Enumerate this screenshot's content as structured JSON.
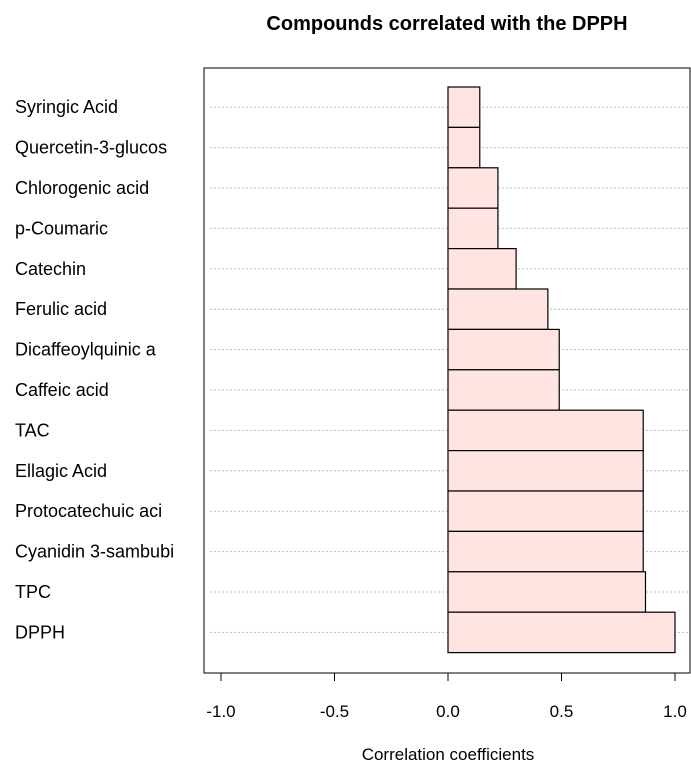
{
  "chart_data": {
    "type": "bar",
    "orientation": "horizontal",
    "title": "Compounds correlated with the DPPH",
    "xlabel": "Correlation coefficients",
    "ylabel": "",
    "xlim": [
      -1.0,
      1.0
    ],
    "x_ticks": [
      "-1.0",
      "-0.5",
      "0.0",
      "0.5",
      "1.0"
    ],
    "x_tick_values": [
      -1.0,
      -0.5,
      0.0,
      0.5,
      1.0
    ],
    "grid": "horizontal dotted lines",
    "legend": "none",
    "categories": [
      "Syringic Acid",
      "Quercetin-3-glucos",
      "Chlorogenic acid",
      "p-Coumaric",
      "Catechin",
      "Ferulic acid",
      "Dicaffeoylquinic a",
      "Caffeic acid",
      "TAC",
      "Ellagic Acid",
      "Protocatechuic aci",
      "Cyanidin 3-sambubi",
      "TPC",
      "DPPH"
    ],
    "values": [
      0.14,
      0.14,
      0.22,
      0.22,
      0.3,
      0.44,
      0.49,
      0.49,
      0.86,
      0.86,
      0.86,
      0.86,
      0.87,
      1.0
    ],
    "colors": {
      "bar_fill": "#FFE4E1",
      "bar_stroke": "#000000",
      "grid": "#BBBBBB"
    }
  }
}
